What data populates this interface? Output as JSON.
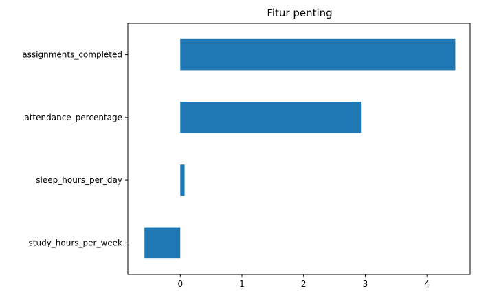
{
  "chart_data": {
    "type": "bar",
    "orientation": "horizontal",
    "title": "Fitur penting",
    "xlabel": "",
    "ylabel": "",
    "categories": [
      "assignments_completed",
      "attendance_percentage",
      "sleep_hours_per_day",
      "study_hours_per_week"
    ],
    "values": [
      4.46,
      2.93,
      0.07,
      -0.58
    ],
    "xlim": [
      -0.85,
      4.7
    ],
    "xticks": [
      0,
      1,
      2,
      3,
      4
    ],
    "grid": false,
    "legend": "none",
    "colors": {
      "bar": "#1f77b4",
      "axis": "#000000",
      "background": "#ffffff"
    }
  }
}
